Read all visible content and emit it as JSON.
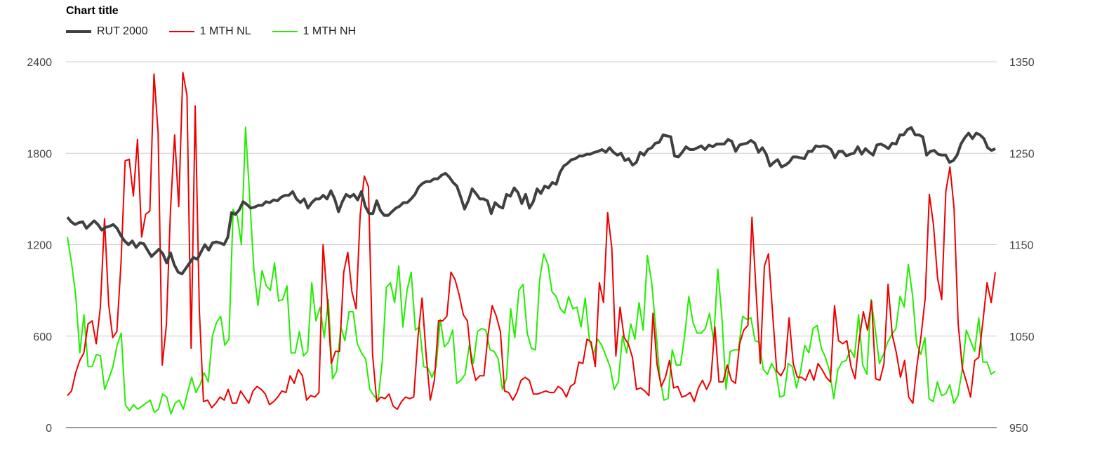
{
  "chart_data": {
    "type": "line",
    "title": "Chart title",
    "legend_position": "top-left",
    "grid": true,
    "y_left": {
      "ticks": [
        "2400",
        "1800",
        "1200",
        "600",
        "0"
      ],
      "range": [
        0,
        2400
      ]
    },
    "y_right": {
      "ticks": [
        "1350",
        "1250",
        "1150",
        "1050",
        "950"
      ],
      "range": [
        950,
        1350
      ]
    },
    "series": [
      {
        "name": "RUT 2000",
        "color": "#404040",
        "axis": "right",
        "width": 4,
        "values": [
          1180,
          1175,
          1172,
          1174,
          1175,
          1168,
          1172,
          1176,
          1172,
          1166,
          1169,
          1170,
          1172,
          1168,
          1160,
          1154,
          1150,
          1154,
          1147,
          1152,
          1151,
          1144,
          1137,
          1141,
          1145,
          1140,
          1130,
          1141,
          1128,
          1120,
          1118,
          1124,
          1130,
          1136,
          1134,
          1142,
          1150,
          1144,
          1152,
          1153,
          1152,
          1150,
          1158,
          1185,
          1183,
          1188,
          1197,
          1194,
          1190,
          1191,
          1193,
          1193,
          1197,
          1196,
          1199,
          1198,
          1202,
          1204,
          1204,
          1208,
          1200,
          1196,
          1200,
          1190,
          1196,
          1200,
          1200,
          1204,
          1200,
          1209,
          1200,
          1186,
          1197,
          1205,
          1202,
          1205,
          1199,
          1208,
          1192,
          1184,
          1184,
          1198,
          1187,
          1182,
          1182,
          1186,
          1190,
          1192,
          1196,
          1196,
          1200,
          1205,
          1213,
          1217,
          1219,
          1219,
          1222,
          1222,
          1226,
          1228,
          1224,
          1218,
          1214,
          1202,
          1189,
          1198,
          1211,
          1206,
          1200,
          1200,
          1198,
          1184,
          1196,
          1192,
          1190,
          1205,
          1203,
          1212,
          1207,
          1195,
          1205,
          1190,
          1197,
          1211,
          1206,
          1214,
          1212,
          1218,
          1216,
          1229,
          1236,
          1239,
          1243,
          1244,
          1247,
          1247,
          1249,
          1249,
          1251,
          1252,
          1254,
          1251,
          1256,
          1251,
          1248,
          1250,
          1242,
          1244,
          1237,
          1240,
          1251,
          1248,
          1254,
          1256,
          1261,
          1262,
          1270,
          1269,
          1268,
          1247,
          1246,
          1251,
          1257,
          1254,
          1254,
          1256,
          1258,
          1254,
          1259,
          1257,
          1260,
          1260,
          1260,
          1265,
          1263,
          1252,
          1259,
          1260,
          1261,
          1264,
          1261,
          1251,
          1256,
          1249,
          1236,
          1240,
          1243,
          1235,
          1237,
          1240,
          1246,
          1246,
          1245,
          1244,
          1252,
          1252,
          1258,
          1257,
          1258,
          1257,
          1254,
          1245,
          1252,
          1252,
          1247,
          1249,
          1250,
          1257,
          1249,
          1255,
          1251,
          1248,
          1259,
          1260,
          1258,
          1255,
          1261,
          1260,
          1270,
          1270,
          1276,
          1278,
          1270,
          1270,
          1268,
          1248,
          1252,
          1253,
          1249,
          1248,
          1248,
          1240,
          1242,
          1248,
          1260,
          1267,
          1272,
          1266,
          1272,
          1270,
          1266,
          1256,
          1253,
          1255
        ]
      },
      {
        "name": "1 MTH NL",
        "color": "#ee0000",
        "axis": "left",
        "width": 2,
        "values": [
          210,
          240,
          360,
          440,
          490,
          680,
          700,
          550,
          790,
          1370,
          810,
          590,
          630,
          1080,
          1750,
          1760,
          1520,
          1890,
          1250,
          1400,
          1420,
          2320,
          1930,
          410,
          670,
          1430,
          1920,
          1450,
          2330,
          2180,
          520,
          2110,
          770,
          170,
          180,
          130,
          160,
          200,
          180,
          250,
          160,
          160,
          240,
          200,
          160,
          240,
          270,
          250,
          220,
          150,
          170,
          200,
          240,
          230,
          340,
          290,
          380,
          340,
          180,
          210,
          200,
          230,
          1200,
          850,
          420,
          500,
          500,
          1020,
          1150,
          890,
          780,
          1400,
          1650,
          1580,
          480,
          170,
          200,
          190,
          220,
          140,
          120,
          170,
          200,
          190,
          200,
          590,
          850,
          470,
          180,
          310,
          700,
          700,
          730,
          1020,
          970,
          870,
          740,
          700,
          430,
          310,
          340,
          340,
          610,
          800,
          730,
          630,
          240,
          230,
          180,
          230,
          310,
          330,
          310,
          220,
          220,
          230,
          240,
          230,
          230,
          270,
          250,
          200,
          270,
          290,
          430,
          420,
          580,
          560,
          400,
          950,
          820,
          1410,
          1180,
          470,
          790,
          590,
          550,
          460,
          250,
          260,
          240,
          210,
          750,
          410,
          270,
          330,
          440,
          260,
          270,
          200,
          210,
          230,
          170,
          260,
          310,
          250,
          310,
          660,
          300,
          300,
          410,
          310,
          290,
          550,
          640,
          670,
          1380,
          890,
          420,
          1060,
          1140,
          750,
          370,
          340,
          390,
          720,
          420,
          330,
          330,
          310,
          380,
          310,
          420,
          380,
          330,
          300,
          800,
          570,
          550,
          570,
          400,
          320,
          580,
          760,
          640,
          830,
          320,
          310,
          420,
          940,
          610,
          490,
          330,
          440,
          200,
          160,
          410,
          600,
          850,
          1530,
          1330,
          980,
          840,
          1550,
          1710,
          1440,
          680,
          390,
          300,
          200,
          440,
          460,
          700,
          950,
          820,
          1020
        ]
      },
      {
        "name": "1 MTH NH",
        "color": "#22ee00",
        "axis": "left",
        "width": 2,
        "values": [
          1250,
          1080,
          870,
          490,
          740,
          400,
          400,
          480,
          470,
          250,
          320,
          400,
          540,
          620,
          150,
          110,
          150,
          120,
          140,
          160,
          180,
          100,
          120,
          220,
          200,
          90,
          160,
          180,
          120,
          230,
          330,
          230,
          280,
          360,
          300,
          600,
          690,
          730,
          540,
          580,
          1430,
          1390,
          1200,
          1970,
          1510,
          1040,
          800,
          1030,
          930,
          900,
          1080,
          830,
          840,
          930,
          490,
          490,
          630,
          470,
          500,
          950,
          700,
          790,
          590,
          840,
          320,
          370,
          660,
          570,
          760,
          760,
          550,
          490,
          450,
          250,
          210,
          180,
          430,
          920,
          950,
          820,
          1060,
          660,
          900,
          1020,
          640,
          660,
          400,
          390,
          330,
          400,
          710,
          530,
          560,
          640,
          290,
          310,
          350,
          540,
          420,
          630,
          650,
          640,
          510,
          500,
          450,
          250,
          320,
          780,
          590,
          900,
          940,
          620,
          520,
          510,
          970,
          1140,
          1070,
          890,
          860,
          780,
          750,
          860,
          780,
          790,
          660,
          850,
          580,
          480,
          580,
          540,
          470,
          400,
          250,
          300,
          600,
          490,
          680,
          580,
          820,
          640,
          1130,
          960,
          660,
          330,
          180,
          190,
          510,
          410,
          410,
          600,
          860,
          690,
          620,
          620,
          650,
          750,
          570,
          1040,
          720,
          250,
          500,
          510,
          510,
          730,
          710,
          720,
          570,
          560,
          380,
          350,
          420,
          370,
          200,
          210,
          420,
          400,
          260,
          370,
          540,
          490,
          650,
          670,
          520,
          460,
          370,
          190,
          380,
          430,
          440,
          510,
          460,
          740,
          410,
          350,
          840,
          650,
          420,
          480,
          560,
          610,
          650,
          860,
          790,
          1070,
          870,
          550,
          480,
          590,
          190,
          170,
          300,
          210,
          220,
          280,
          160,
          210,
          380,
          640,
          570,
          500,
          720,
          430,
          430,
          350,
          370
        ]
      }
    ]
  }
}
